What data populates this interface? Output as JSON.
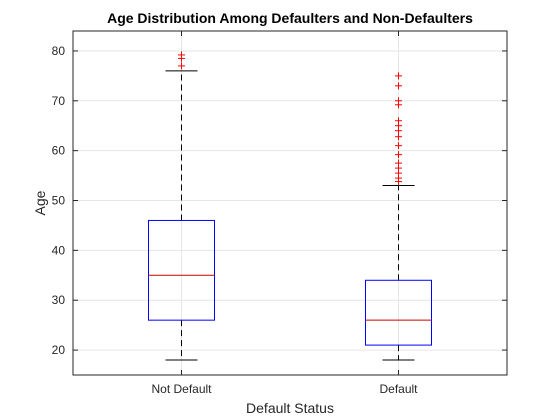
{
  "chart_data": {
    "type": "box",
    "title": "Age Distribution Among Defaulters and Non-Defaulters",
    "xlabel": "Default Status",
    "ylabel": "Age",
    "categories": [
      "Not Default",
      "Default"
    ],
    "ylim": [
      15,
      84
    ],
    "yticks": [
      20,
      30,
      40,
      50,
      60,
      70,
      80
    ],
    "grid": true,
    "colors": {
      "box": "#0000ff",
      "median": "#cc0000",
      "whisker": "#000000",
      "outlier": "#ff0000",
      "grid": "#e6e6e6",
      "axes": "#262626"
    },
    "boxes": [
      {
        "category": "Not Default",
        "whisker_low": 18,
        "q1": 26,
        "median": 35,
        "q3": 46,
        "whisker_high": 76,
        "outliers": [
          77,
          78.5,
          79.2
        ]
      },
      {
        "category": "Default",
        "whisker_low": 18,
        "q1": 21,
        "median": 26,
        "q3": 34,
        "whisker_high": 53,
        "outliers": [
          53.8,
          54.5,
          55.5,
          56.5,
          57.5,
          59.2,
          61,
          62.8,
          64,
          65,
          66,
          69.2,
          70,
          73,
          75
        ]
      }
    ]
  }
}
